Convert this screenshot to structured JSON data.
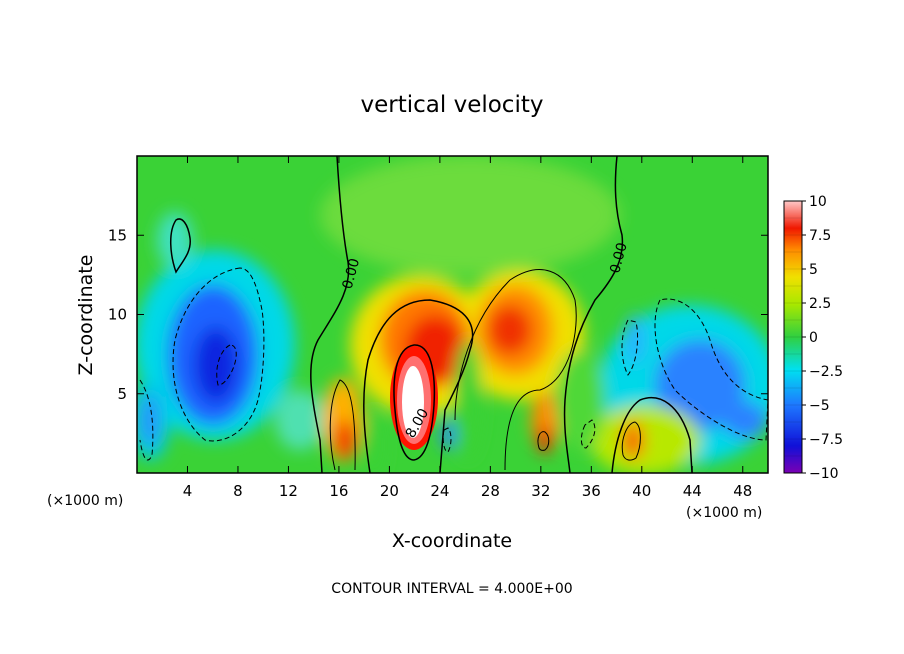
{
  "chart_data": {
    "type": "heatmap",
    "title": "vertical velocity",
    "xlabel": "X-coordinate",
    "ylabel": "Z-coordinate",
    "x_unit_left": "(×1000 m)",
    "x_unit_right": "(×1000 m)",
    "footer": "CONTOUR INTERVAL = 4.000E+00",
    "xlim": [
      0,
      50
    ],
    "ylim": [
      0,
      20
    ],
    "x_ticks": [
      4,
      8,
      12,
      16,
      20,
      24,
      28,
      32,
      36,
      40,
      44,
      48
    ],
    "x_tick_labels": [
      "4",
      "8",
      "12",
      "16",
      "20",
      "24",
      "28",
      "32",
      "36",
      "40",
      "44",
      "48"
    ],
    "y_ticks": [
      5,
      10,
      15
    ],
    "y_tick_labels": [
      "5",
      "10",
      "15"
    ],
    "colorbar": {
      "min": -10,
      "max": 10,
      "ticks": [
        10,
        7.5,
        5,
        2.5,
        0,
        -2.5,
        -5,
        -7.5,
        -10
      ],
      "tick_labels": [
        "10",
        "7.5",
        "5",
        "2.5",
        "0",
        "−2.5",
        "−5",
        "−7.5",
        "−10"
      ]
    },
    "contour_labels": [
      {
        "text": "0.00",
        "x": 17.3,
        "y": 12.5,
        "angle": -75
      },
      {
        "text": "0.00",
        "x": 38.5,
        "y": 13.5,
        "angle": -75
      },
      {
        "text": "8.00",
        "x": 22.5,
        "y": 3.0,
        "angle": -60
      }
    ],
    "features": [
      {
        "name": "updraft-core",
        "x": 22,
        "z": 5,
        "peak": 10
      },
      {
        "name": "updraft-east",
        "x": 31,
        "z": 8,
        "peak": 7
      },
      {
        "name": "updraft-low-16",
        "x": 16.5,
        "z": 2.5,
        "peak": 8
      },
      {
        "name": "updraft-low-32",
        "x": 32,
        "z": 2,
        "peak": 8
      },
      {
        "name": "updraft-low-40",
        "x": 39.5,
        "z": 2,
        "peak": 6
      },
      {
        "name": "downdraft-west",
        "x": 6,
        "z": 7,
        "peak": -8
      },
      {
        "name": "downdraft-east",
        "x": 45,
        "z": 6,
        "peak": -5
      },
      {
        "name": "downdraft-top-west",
        "x": 3,
        "z": 15,
        "peak": -3
      }
    ]
  }
}
